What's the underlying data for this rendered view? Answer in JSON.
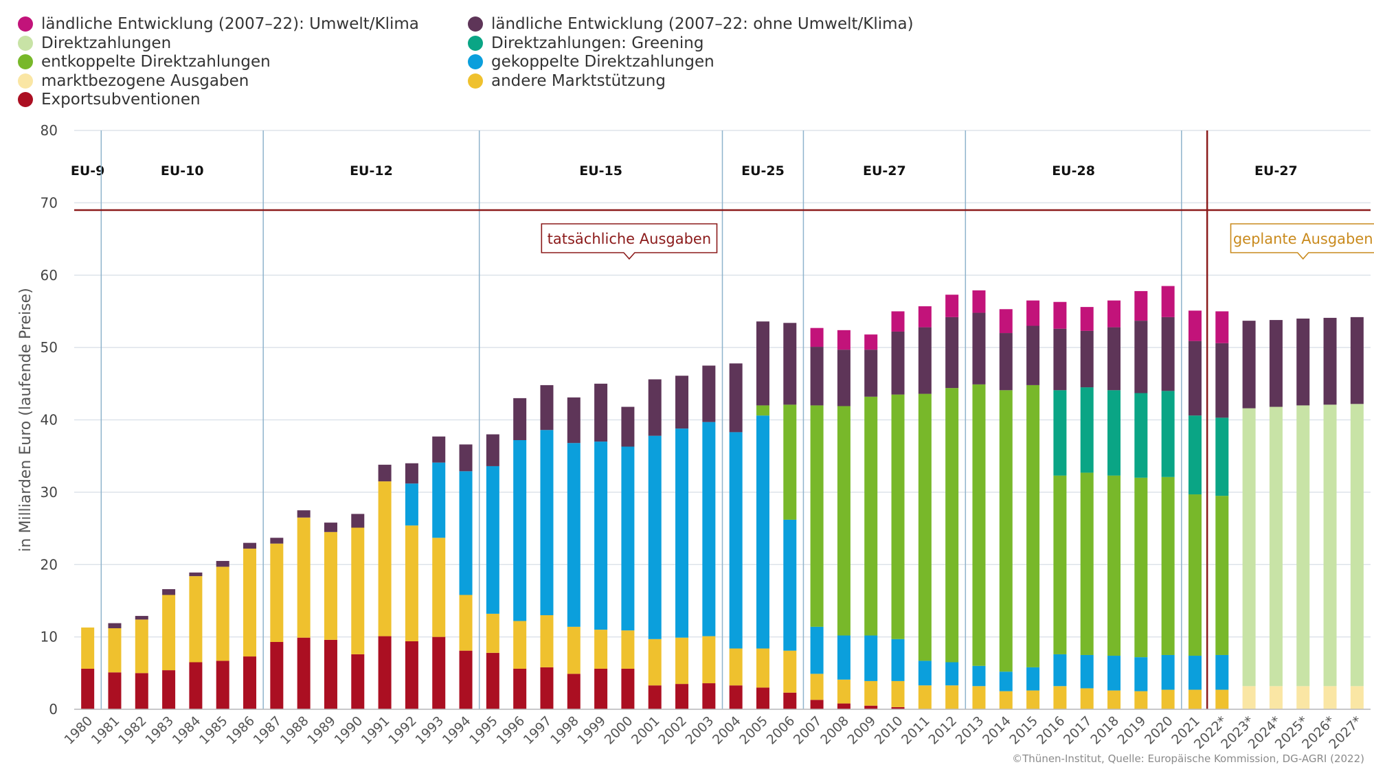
{
  "chart_data": {
    "type": "bar",
    "stacked": true,
    "ylabel": "in Milliarden Euro (laufende Preise)",
    "ylim": [
      0,
      80
    ],
    "yticks": [
      0,
      10,
      20,
      30,
      40,
      50,
      60,
      70,
      80
    ],
    "grid": true,
    "legend_position": "top-left",
    "categories": [
      "1980",
      "1981",
      "1982",
      "1983",
      "1984",
      "1985",
      "1986",
      "1987",
      "1988",
      "1989",
      "1990",
      "1991",
      "1992",
      "1993",
      "1994",
      "1995",
      "1996",
      "1997",
      "1998",
      "1999",
      "2000",
      "2001",
      "2002",
      "2003",
      "2004",
      "2005",
      "2006",
      "2007",
      "2008",
      "2009",
      "2010",
      "2011",
      "2012",
      "2013",
      "2014",
      "2015",
      "2016",
      "2017",
      "2018",
      "2019",
      "2020",
      "2021",
      "2022*",
      "2023*",
      "2024*",
      "2025*",
      "2026*",
      "2027*"
    ],
    "series": [
      {
        "name": "Exportsubventionen",
        "color": "#ab0f22",
        "values": [
          5.6,
          5.1,
          5.0,
          5.4,
          6.5,
          6.7,
          7.3,
          9.3,
          9.9,
          9.6,
          7.6,
          10.1,
          9.4,
          10.0,
          8.1,
          7.8,
          5.6,
          5.8,
          4.9,
          5.6,
          5.6,
          3.3,
          3.5,
          3.6,
          3.3,
          3.0,
          2.3,
          1.3,
          0.8,
          0.5,
          0.3,
          0,
          0,
          0,
          0,
          0,
          0,
          0,
          0,
          0,
          0,
          0,
          0,
          0,
          0,
          0,
          0,
          0
        ]
      },
      {
        "name": "marktbezogene Ausgaben",
        "color": "#fae6a4",
        "values": [
          0,
          0,
          0,
          0,
          0,
          0,
          0,
          0,
          0,
          0,
          0,
          0,
          0,
          0,
          0,
          0,
          0,
          0,
          0,
          0,
          0,
          0,
          0,
          0,
          0,
          0,
          0,
          0,
          0,
          0,
          0,
          0,
          0,
          0,
          0,
          0,
          0,
          0,
          0,
          0,
          0,
          0,
          0,
          3.2,
          3.2,
          3.2,
          3.2,
          3.2
        ]
      },
      {
        "name": "andere Marktstützung",
        "color": "#efc12e",
        "values": [
          5.7,
          6.1,
          7.4,
          10.4,
          11.9,
          13.0,
          14.9,
          13.6,
          16.6,
          14.9,
          17.5,
          21.4,
          16.0,
          13.7,
          7.7,
          5.4,
          6.6,
          7.2,
          6.5,
          5.4,
          5.3,
          6.4,
          6.4,
          6.5,
          5.1,
          5.4,
          5.8,
          3.6,
          3.3,
          3.4,
          3.6,
          3.3,
          3.3,
          3.2,
          2.5,
          2.6,
          3.2,
          2.9,
          2.6,
          2.5,
          2.7,
          2.7,
          2.7,
          0,
          0,
          0,
          0,
          0
        ]
      },
      {
        "name": "gekoppelte Direktzahlungen",
        "color": "#0b9fdc",
        "values": [
          0,
          0,
          0,
          0,
          0,
          0,
          0,
          0,
          0,
          0,
          0,
          0,
          5.8,
          10.4,
          17.1,
          20.4,
          25.0,
          25.6,
          25.4,
          26.0,
          25.4,
          28.1,
          28.9,
          29.6,
          29.9,
          32.2,
          18.1,
          6.5,
          6.1,
          6.3,
          5.8,
          3.4,
          3.2,
          2.8,
          2.7,
          3.2,
          4.4,
          4.6,
          4.8,
          4.7,
          4.8,
          4.7,
          4.8,
          0,
          0,
          0,
          0,
          0
        ]
      },
      {
        "name": "entkoppelte Direktzahlungen",
        "color": "#78b82a",
        "values": [
          0,
          0,
          0,
          0,
          0,
          0,
          0,
          0,
          0,
          0,
          0,
          0,
          0,
          0,
          0,
          0,
          0,
          0,
          0,
          0,
          0,
          0,
          0,
          0,
          0,
          1.4,
          15.9,
          30.6,
          31.7,
          33.0,
          33.8,
          36.9,
          37.9,
          38.9,
          38.9,
          39.0,
          24.7,
          25.2,
          24.9,
          24.8,
          24.6,
          22.3,
          22.0,
          0,
          0,
          0,
          0,
          0
        ]
      },
      {
        "name": "Direktzahlungen: Greening",
        "color": "#0aa585",
        "values": [
          0,
          0,
          0,
          0,
          0,
          0,
          0,
          0,
          0,
          0,
          0,
          0,
          0,
          0,
          0,
          0,
          0,
          0,
          0,
          0,
          0,
          0,
          0,
          0,
          0,
          0,
          0,
          0,
          0,
          0,
          0,
          0,
          0,
          0,
          0,
          0,
          11.8,
          11.8,
          11.8,
          11.7,
          11.9,
          10.9,
          10.8,
          0,
          0,
          0,
          0,
          0
        ]
      },
      {
        "name": "Direktzahlungen",
        "color": "#c8e3a6",
        "values": [
          0,
          0,
          0,
          0,
          0,
          0,
          0,
          0,
          0,
          0,
          0,
          0,
          0,
          0,
          0,
          0,
          0,
          0,
          0,
          0,
          0,
          0,
          0,
          0,
          0,
          0,
          0,
          0,
          0,
          0,
          0,
          0,
          0,
          0,
          0,
          0,
          0,
          0,
          0,
          0,
          0,
          0,
          0,
          38.4,
          38.6,
          38.8,
          38.9,
          39.0
        ]
      },
      {
        "name": "ländliche Entwicklung (2007–22: ohne Umwelt/Klima)",
        "color": "#5e3558",
        "values": [
          0,
          0.7,
          0.5,
          0.8,
          0.5,
          0.8,
          0.8,
          0.8,
          1.0,
          1.3,
          1.9,
          2.3,
          2.8,
          3.6,
          3.7,
          4.4,
          5.8,
          6.2,
          6.3,
          8.0,
          5.5,
          7.8,
          7.3,
          7.8,
          9.5,
          11.6,
          11.3,
          8.1,
          7.8,
          6.5,
          8.7,
          9.2,
          9.8,
          9.9,
          7.9,
          8.2,
          8.5,
          7.8,
          8.7,
          10.0,
          10.2,
          10.3,
          10.3,
          12.1,
          12.0,
          12.0,
          12.0,
          12.0
        ]
      },
      {
        "name": "ländliche Entwicklung (2007–22): Umwelt/Klima",
        "color": "#c2137a",
        "values": [
          0,
          0,
          0,
          0,
          0,
          0,
          0,
          0,
          0,
          0,
          0,
          0,
          0,
          0,
          0,
          0,
          0,
          0,
          0,
          0,
          0,
          0,
          0,
          0,
          0,
          0,
          0,
          2.6,
          2.7,
          2.1,
          2.8,
          2.9,
          3.1,
          3.1,
          3.3,
          3.5,
          3.7,
          3.3,
          3.7,
          4.1,
          4.3,
          4.2,
          4.4,
          0,
          0,
          0,
          0,
          0
        ]
      }
    ],
    "periods": [
      {
        "label": "EU-9",
        "from": "1980",
        "to": "1980"
      },
      {
        "label": "EU-10",
        "from": "1981",
        "to": "1986"
      },
      {
        "label": "EU-12",
        "from": "1987",
        "to": "1994"
      },
      {
        "label": "EU-15",
        "from": "1995",
        "to": "2003"
      },
      {
        "label": "EU-25",
        "from": "2004",
        "to": "2006"
      },
      {
        "label": "EU-27",
        "from": "2007",
        "to": "2012"
      },
      {
        "label": "EU-28",
        "from": "2013",
        "to": "2020"
      },
      {
        "label": "EU-27",
        "from": "2021",
        "to": "2027*"
      }
    ],
    "annotations": {
      "actual": "tatsächliche Ausgaben",
      "planned": "geplante Ausgaben"
    }
  },
  "legend_layout": [
    [
      "ländliche Entwicklung (2007–22): Umwelt/Klima",
      "ländliche Entwicklung (2007–22: ohne Umwelt/Klima)"
    ],
    [
      "Direktzahlungen",
      "Direktzahlungen: Greening"
    ],
    [
      "entkoppelte Direktzahlungen",
      "gekoppelte Direktzahlungen"
    ],
    [
      "marktbezogene Ausgaben",
      "andere Marktstützung"
    ],
    [
      "Exportsubventionen"
    ]
  ],
  "source": "©Thünen-Institut, Quelle: Europäische Kommission, DG-AGRI (2022)",
  "colors": {
    "divider": "#8b1a1a",
    "grid": "#dde3ea",
    "period_line": "#8eb3cc",
    "planned": "#c98a1d"
  }
}
